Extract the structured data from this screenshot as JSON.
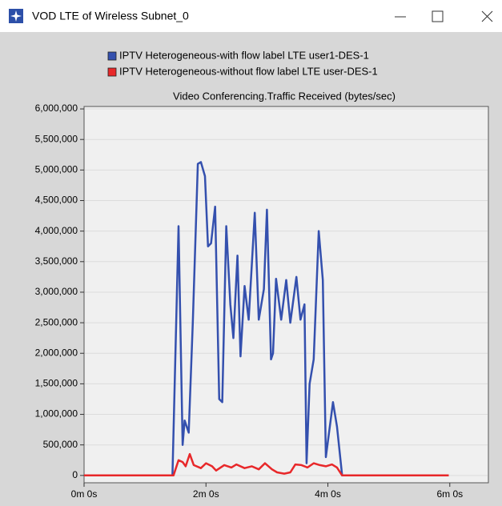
{
  "window": {
    "title": "VOD LTE of Wireless Subnet_0"
  },
  "chart_data": {
    "type": "line",
    "title": "Video Conferencing.Traffic Received (bytes/sec)",
    "series": [
      {
        "name": "IPTV  Heterogeneous-with flow label LTE user1-DES-1",
        "color": "#3450ae",
        "x": [
          0,
          87,
          93,
          97,
          99,
          103,
          107,
          112,
          115,
          119,
          122,
          125,
          129,
          133,
          136,
          140,
          144,
          147,
          151,
          154,
          158,
          162,
          168,
          172,
          177,
          180,
          184,
          186,
          189,
          194,
          199,
          203,
          209,
          213,
          217,
          219,
          222,
          226,
          231,
          235,
          238,
          245,
          249,
          254,
          359
        ],
        "values": [
          0,
          0,
          4080000,
          500000,
          900000,
          700000,
          2500000,
          5100000,
          5130000,
          4900000,
          3750000,
          3800000,
          4400000,
          1250000,
          1200000,
          4080000,
          2800000,
          2250000,
          3600000,
          1950000,
          3100000,
          2550000,
          4300000,
          2550000,
          3050000,
          4350000,
          1900000,
          2000000,
          3220000,
          2550000,
          3200000,
          2500000,
          3250000,
          2550000,
          2800000,
          200000,
          1500000,
          1900000,
          4000000,
          3200000,
          300000,
          1200000,
          800000,
          0,
          0
        ]
      },
      {
        "name": "IPTV  Heterogeneous-without flow label LTE user-DES-1",
        "color": "#e8282a",
        "x": [
          0,
          88,
          93,
          97,
          100,
          104,
          108,
          115,
          120,
          126,
          130,
          138,
          145,
          150,
          158,
          165,
          172,
          178,
          185,
          190,
          197,
          203,
          208,
          214,
          220,
          226,
          232,
          238,
          244,
          249,
          254,
          359
        ],
        "values": [
          0,
          0,
          250000,
          220000,
          150000,
          350000,
          170000,
          120000,
          200000,
          150000,
          80000,
          170000,
          130000,
          180000,
          120000,
          150000,
          100000,
          200000,
          100000,
          50000,
          30000,
          50000,
          180000,
          170000,
          130000,
          200000,
          170000,
          150000,
          180000,
          130000,
          0,
          0
        ]
      }
    ],
    "xlim": [
      0,
      398
    ],
    "xticks": [
      {
        "value": 0,
        "label": "0m 0s"
      },
      {
        "value": 120,
        "label": "2m 0s"
      },
      {
        "value": 240,
        "label": "4m 0s"
      },
      {
        "value": 360,
        "label": "6m 0s"
      }
    ],
    "ylim": [
      -120000,
      6040000
    ],
    "yticks": [
      0,
      {
        "value": 500000,
        "label": "500,000"
      },
      {
        "value": 1000000,
        "label": "1,000,000"
      },
      {
        "value": 1500000,
        "label": "1,500,000"
      },
      {
        "value": 2000000,
        "label": "2,000,000"
      },
      {
        "value": 2500000,
        "label": "2,500,000"
      },
      {
        "value": 3000000,
        "label": "3,000,000"
      },
      {
        "value": 3500000,
        "label": "3,500,000"
      },
      {
        "value": 4000000,
        "label": "4,000,000"
      },
      {
        "value": 4500000,
        "label": "4,500,000"
      },
      {
        "value": 5000000,
        "label": "5,000,000"
      },
      {
        "value": 5500000,
        "label": "5,500,000"
      },
      {
        "value": 6000000,
        "label": "6,000,000"
      }
    ],
    "grid": true
  }
}
